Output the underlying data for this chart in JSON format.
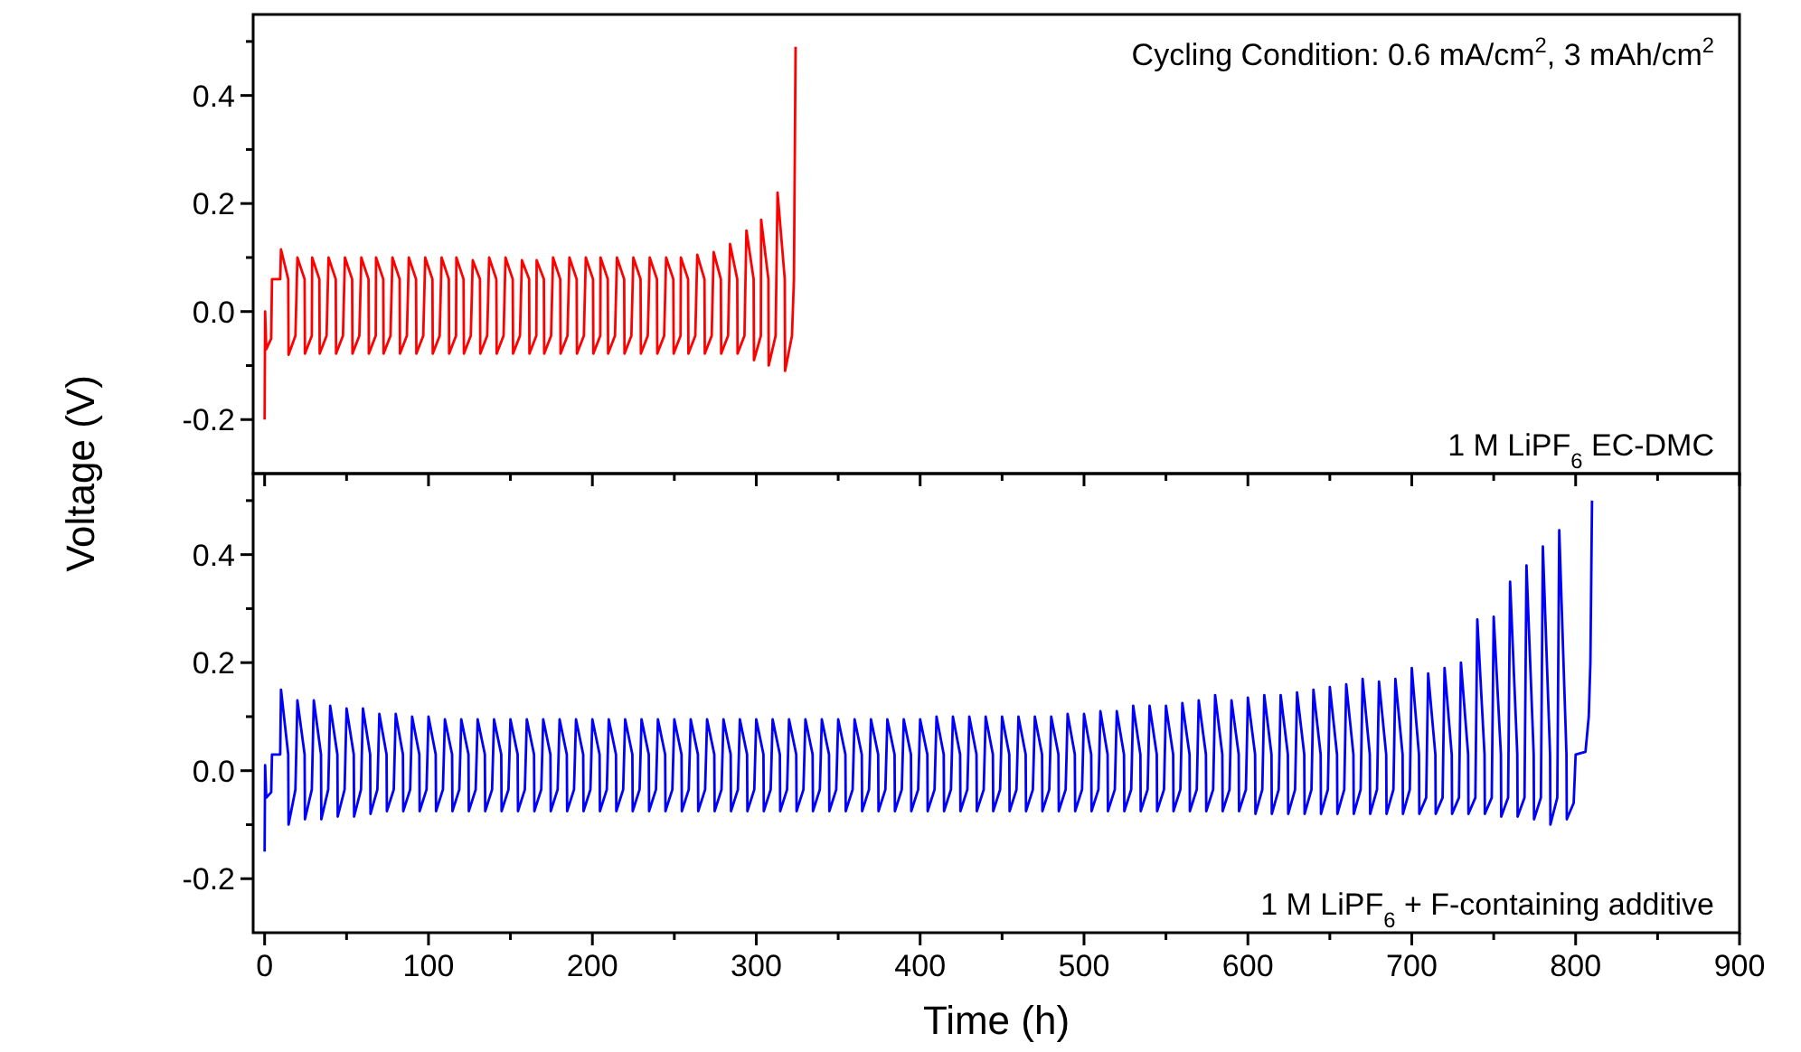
{
  "chart_data": [
    {
      "type": "line",
      "ylabel": "Voltage (V)",
      "annotations": [
        "Cycling Condition: 0.6 mA/cm$^{2}$, 3 mAh/cm$^{2}$",
        "1 M LiPF$_{6}$ EC-DMC"
      ],
      "xlim": [
        -7,
        900
      ],
      "ylim": [
        -0.3,
        0.55
      ],
      "xticks": [
        0,
        {
          "value": 50,
          "label": null
        },
        100,
        {
          "value": 150,
          "label": null
        },
        200,
        {
          "value": 250,
          "label": null
        },
        300,
        {
          "value": 350,
          "label": null
        },
        400,
        {
          "value": 450,
          "label": null
        },
        500,
        {
          "value": 550,
          "label": null
        },
        600,
        {
          "value": 650,
          "label": null
        },
        700,
        {
          "value": 750,
          "label": null
        },
        800,
        {
          "value": 850,
          "label": null
        },
        900
      ],
      "yticks": [
        -0.2,
        {
          "value": -0.1,
          "label": null
        },
        {
          "value": 0,
          "label": "0.0"
        },
        {
          "value": 0.1,
          "label": null
        },
        0.2,
        {
          "value": 0.3,
          "label": null
        },
        0.4,
        {
          "value": 0.5,
          "label": null
        }
      ],
      "tick_labels": "y",
      "grid": false,
      "series": [
        {
          "color": "#ff0000",
          "x": [
            0,
            0.3,
            1,
            4,
            4.5,
            9.5,
            10,
            14.4,
            14.6,
            18.8,
            20,
            24.4,
            24.6,
            28.8,
            29,
            33.4,
            33.6,
            37.8,
            39,
            43.4,
            43.6,
            47.8,
            49,
            53.4,
            53.6,
            57.8,
            59,
            63.4,
            63.6,
            67.8,
            68,
            72.4,
            72.6,
            76.8,
            78,
            82.4,
            82.6,
            86.8,
            88,
            92.4,
            92.6,
            96.8,
            98,
            102.4,
            102.6,
            106.8,
            108,
            112.4,
            112.6,
            116.8,
            117,
            121.4,
            121.6,
            125.8,
            127,
            131.4,
            131.6,
            135.8,
            137,
            141.4,
            141.6,
            145.8,
            147,
            151.4,
            151.6,
            155.8,
            157,
            161.4,
            161.6,
            165.8,
            166,
            170.4,
            170.6,
            174.8,
            176,
            180.4,
            180.6,
            184.8,
            186,
            190.4,
            190.6,
            194.8,
            196,
            200.4,
            200.6,
            204.8,
            205,
            209.4,
            209.6,
            213.8,
            215,
            219.4,
            219.6,
            223.8,
            225,
            229.4,
            229.6,
            233.8,
            235,
            239.4,
            239.6,
            243.8,
            245,
            249.4,
            249.6,
            253.8,
            254,
            258.4,
            258.6,
            262.8,
            264,
            268.4,
            268.6,
            272.8,
            274,
            278.4,
            278.6,
            282.8,
            284,
            288.4,
            288.6,
            292.8,
            294,
            298.4,
            298.6,
            302.8,
            303,
            307.4,
            307.6,
            311.8,
            313,
            317.4,
            317.6,
            321.8,
            323,
            323.5,
            324
          ],
          "values": [
            -0.2,
            0,
            -0.07,
            -0.05,
            0.06,
            0.06,
            0.115,
            0.06,
            -0.08,
            -0.045,
            0.1,
            0.06,
            -0.078,
            -0.045,
            0.1,
            0.06,
            -0.078,
            -0.045,
            0.1,
            0.06,
            -0.078,
            -0.045,
            0.1,
            0.06,
            -0.078,
            -0.045,
            0.1,
            0.06,
            -0.078,
            -0.045,
            0.1,
            0.06,
            -0.078,
            -0.045,
            0.1,
            0.06,
            -0.078,
            -0.045,
            0.1,
            0.06,
            -0.078,
            -0.045,
            0.1,
            0.06,
            -0.078,
            -0.045,
            0.1,
            0.06,
            -0.078,
            -0.045,
            0.1,
            0.06,
            -0.078,
            -0.045,
            0.095,
            0.06,
            -0.078,
            -0.045,
            0.1,
            0.06,
            -0.078,
            -0.045,
            0.1,
            0.06,
            -0.078,
            -0.045,
            0.095,
            0.06,
            -0.078,
            -0.045,
            0.095,
            0.06,
            -0.078,
            -0.045,
            0.1,
            0.06,
            -0.078,
            -0.045,
            0.1,
            0.06,
            -0.078,
            -0.045,
            0.1,
            0.06,
            -0.078,
            -0.045,
            0.1,
            0.06,
            -0.078,
            -0.045,
            0.1,
            0.06,
            -0.078,
            -0.045,
            0.1,
            0.06,
            -0.078,
            -0.045,
            0.1,
            0.06,
            -0.078,
            -0.045,
            0.1,
            0.06,
            -0.078,
            -0.045,
            0.1,
            0.06,
            -0.078,
            -0.045,
            0.105,
            0.06,
            -0.078,
            -0.045,
            0.11,
            0.06,
            -0.078,
            -0.045,
            0.125,
            0.06,
            -0.078,
            -0.045,
            0.15,
            0.06,
            -0.09,
            -0.045,
            0.17,
            0.06,
            -0.1,
            -0.045,
            0.22,
            0.06,
            -0.11,
            -0.045,
            0.06,
            0.28,
            0.49
          ]
        }
      ]
    },
    {
      "type": "line",
      "xlabel": "Time (h)",
      "annotations": [
        "1 M LiPF$_{6}$ + F-containing additive"
      ],
      "xlim": [
        -7,
        900
      ],
      "ylim": [
        -0.3,
        0.55
      ],
      "xticks": [
        0,
        {
          "value": 50,
          "label": null
        },
        100,
        {
          "value": 150,
          "label": null
        },
        200,
        {
          "value": 250,
          "label": null
        },
        300,
        {
          "value": 350,
          "label": null
        },
        400,
        {
          "value": 450,
          "label": null
        },
        500,
        {
          "value": 550,
          "label": null
        },
        600,
        {
          "value": 650,
          "label": null
        },
        700,
        {
          "value": 750,
          "label": null
        },
        800,
        {
          "value": 850,
          "label": null
        },
        900
      ],
      "yticks": [
        -0.2,
        {
          "value": -0.1,
          "label": null
        },
        {
          "value": 0,
          "label": "0.0"
        },
        {
          "value": 0.1,
          "label": null
        },
        0.2,
        {
          "value": 0.3,
          "label": null
        },
        0.4,
        {
          "value": 0.5,
          "label": null
        }
      ],
      "grid": false,
      "series": [
        {
          "color": "#0000ff",
          "x": [
            0,
            0.3,
            1,
            4,
            4.5,
            9.5,
            10,
            14.4,
            14.6,
            18.8,
            20,
            24.4,
            24.6,
            28.8,
            30,
            34.4,
            34.6,
            38.8,
            40,
            44.4,
            44.6,
            48.8,
            50,
            54.4,
            54.6,
            58.8,
            60,
            64.4,
            64.6,
            68.8,
            70,
            74.4,
            74.6,
            78.8,
            80,
            84.4,
            84.6,
            88.8,
            90,
            94.4,
            94.6,
            98.8,
            100,
            104.4,
            104.6,
            108.8,
            110,
            114.4,
            114.6,
            118.8,
            120,
            124.4,
            124.6,
            128.8,
            130,
            134.4,
            134.6,
            138.8,
            140,
            144.4,
            144.6,
            148.8,
            150,
            154.4,
            154.6,
            158.8,
            160,
            164.4,
            164.6,
            168.8,
            170,
            174.4,
            174.6,
            178.8,
            180,
            184.4,
            184.6,
            188.8,
            190,
            194.4,
            194.6,
            198.8,
            200,
            204.4,
            204.6,
            208.8,
            210,
            214.4,
            214.6,
            218.8,
            220,
            224.4,
            224.6,
            228.8,
            230,
            234.4,
            234.6,
            238.8,
            240,
            244.4,
            244.6,
            248.8,
            250,
            254.4,
            254.6,
            258.8,
            260,
            264.4,
            264.6,
            268.8,
            270,
            274.4,
            274.6,
            278.8,
            280,
            284.4,
            284.6,
            288.8,
            290,
            294.4,
            294.6,
            298.8,
            300,
            304.4,
            304.6,
            308.8,
            310,
            314.4,
            314.6,
            318.8,
            320,
            324.4,
            324.6,
            328.8,
            330,
            334.4,
            334.6,
            338.8,
            340,
            344.4,
            344.6,
            348.8,
            350,
            354.4,
            354.6,
            358.8,
            360,
            364.4,
            364.6,
            368.8,
            370,
            374.4,
            374.6,
            378.8,
            380,
            384.4,
            384.6,
            388.8,
            390,
            394.4,
            394.6,
            398.8,
            400,
            404.4,
            404.6,
            408.8,
            410,
            414.4,
            414.6,
            418.8,
            420,
            424.4,
            424.6,
            428.8,
            430,
            434.4,
            434.6,
            438.8,
            440,
            444.4,
            444.6,
            448.8,
            450,
            454.4,
            454.6,
            458.8,
            460,
            464.4,
            464.6,
            468.8,
            470,
            474.4,
            474.6,
            478.8,
            480,
            484.4,
            484.6,
            488.8,
            490,
            494.4,
            494.6,
            498.8,
            500,
            504.4,
            504.6,
            508.8,
            510,
            514.4,
            514.6,
            518.8,
            520,
            524.4,
            524.6,
            528.8,
            530,
            534.4,
            534.6,
            538.8,
            540,
            544.4,
            544.6,
            548.8,
            550,
            554.4,
            554.6,
            558.8,
            560,
            564.4,
            564.6,
            568.8,
            570,
            574.4,
            574.6,
            578.8,
            580,
            584.4,
            584.6,
            588.8,
            590,
            594.4,
            594.6,
            598.8,
            600,
            604.4,
            604.6,
            608.8,
            610,
            614.4,
            614.6,
            618.8,
            620,
            624.4,
            624.6,
            628.8,
            630,
            634.4,
            634.6,
            638.8,
            640,
            644.4,
            644.6,
            648.8,
            650,
            654.4,
            654.6,
            658.8,
            660,
            664.4,
            664.6,
            668.8,
            670,
            674.4,
            674.6,
            678.8,
            680,
            684.4,
            684.6,
            688.8,
            690,
            694.4,
            694.6,
            698.8,
            700,
            704.4,
            704.6,
            708.8,
            710,
            714.4,
            714.6,
            718.8,
            720,
            724.4,
            724.6,
            728.8,
            730,
            734.4,
            734.6,
            738.8,
            740,
            744.4,
            744.6,
            748.8,
            750,
            754.4,
            754.6,
            758.8,
            760,
            764.4,
            764.6,
            768.8,
            770,
            774.4,
            774.6,
            778.8,
            780,
            784.4,
            784.6,
            788.8,
            790,
            794.4,
            794.6,
            798.8,
            800,
            806,
            808,
            809,
            810
          ],
          "values": [
            -0.15,
            0.01,
            -0.05,
            -0.04,
            0.03,
            0.03,
            0.15,
            0.03,
            -0.1,
            -0.035,
            0.13,
            0.03,
            -0.09,
            -0.035,
            0.13,
            0.03,
            -0.09,
            -0.035,
            0.12,
            0.03,
            -0.085,
            -0.035,
            0.115,
            0.03,
            -0.085,
            -0.035,
            0.115,
            0.03,
            -0.08,
            -0.035,
            0.105,
            0.03,
            -0.075,
            -0.035,
            0.105,
            0.03,
            -0.075,
            -0.035,
            0.1,
            0.03,
            -0.075,
            -0.035,
            0.1,
            0.03,
            -0.075,
            -0.035,
            0.095,
            0.03,
            -0.075,
            -0.035,
            0.095,
            0.03,
            -0.075,
            -0.035,
            0.095,
            0.03,
            -0.075,
            -0.035,
            0.095,
            0.03,
            -0.075,
            -0.035,
            0.095,
            0.03,
            -0.075,
            -0.035,
            0.095,
            0.03,
            -0.075,
            -0.035,
            0.095,
            0.03,
            -0.075,
            -0.035,
            0.095,
            0.03,
            -0.075,
            -0.035,
            0.095,
            0.03,
            -0.075,
            -0.035,
            0.095,
            0.03,
            -0.075,
            -0.035,
            0.095,
            0.03,
            -0.075,
            -0.035,
            0.095,
            0.03,
            -0.075,
            -0.035,
            0.095,
            0.03,
            -0.075,
            -0.035,
            0.095,
            0.03,
            -0.075,
            -0.035,
            0.095,
            0.03,
            -0.075,
            -0.035,
            0.095,
            0.03,
            -0.075,
            -0.035,
            0.095,
            0.03,
            -0.075,
            -0.035,
            0.095,
            0.03,
            -0.075,
            -0.035,
            0.095,
            0.03,
            -0.075,
            -0.035,
            0.095,
            0.03,
            -0.075,
            -0.035,
            0.095,
            0.03,
            -0.075,
            -0.035,
            0.095,
            0.03,
            -0.075,
            -0.035,
            0.095,
            0.03,
            -0.075,
            -0.035,
            0.095,
            0.03,
            -0.075,
            -0.035,
            0.095,
            0.03,
            -0.075,
            -0.035,
            0.095,
            0.03,
            -0.075,
            -0.035,
            0.095,
            0.03,
            -0.075,
            -0.035,
            0.095,
            0.03,
            -0.075,
            -0.035,
            0.095,
            0.03,
            -0.075,
            -0.035,
            0.095,
            0.03,
            -0.075,
            -0.035,
            0.1,
            0.03,
            -0.075,
            -0.035,
            0.1,
            0.03,
            -0.075,
            -0.035,
            0.1,
            0.03,
            -0.075,
            -0.035,
            0.1,
            0.03,
            -0.075,
            -0.035,
            0.1,
            0.03,
            -0.075,
            -0.035,
            0.1,
            0.03,
            -0.075,
            -0.035,
            0.1,
            0.03,
            -0.075,
            -0.035,
            0.1,
            0.03,
            -0.075,
            -0.035,
            0.105,
            0.03,
            -0.075,
            -0.035,
            0.105,
            0.03,
            -0.075,
            -0.035,
            0.11,
            0.03,
            -0.075,
            -0.035,
            0.11,
            0.03,
            -0.075,
            -0.035,
            0.12,
            0.03,
            -0.075,
            -0.035,
            0.12,
            0.03,
            -0.075,
            -0.035,
            0.12,
            0.03,
            -0.075,
            -0.035,
            0.125,
            0.03,
            -0.075,
            -0.035,
            0.13,
            0.03,
            -0.075,
            -0.035,
            0.14,
            0.03,
            -0.075,
            -0.035,
            0.13,
            0.03,
            -0.075,
            -0.035,
            0.135,
            0.03,
            -0.08,
            -0.035,
            0.14,
            0.03,
            -0.08,
            -0.035,
            0.14,
            0.03,
            -0.08,
            -0.035,
            0.145,
            0.03,
            -0.08,
            -0.035,
            0.15,
            0.03,
            -0.08,
            -0.035,
            0.155,
            0.03,
            -0.08,
            -0.035,
            0.16,
            0.03,
            -0.08,
            -0.035,
            0.17,
            0.03,
            -0.08,
            -0.035,
            0.165,
            0.03,
            -0.08,
            -0.035,
            0.17,
            0.03,
            -0.08,
            -0.035,
            0.19,
            0.03,
            -0.08,
            -0.05,
            0.18,
            0.03,
            -0.08,
            -0.05,
            0.19,
            0.03,
            -0.08,
            -0.05,
            0.2,
            0.03,
            -0.08,
            -0.05,
            0.28,
            0.03,
            -0.08,
            -0.05,
            0.285,
            0.03,
            -0.085,
            -0.05,
            0.35,
            0.03,
            -0.085,
            -0.05,
            0.38,
            0.03,
            -0.09,
            -0.05,
            0.415,
            0.03,
            -0.1,
            -0.05,
            0.445,
            0.03,
            -0.09,
            -0.06,
            0.03,
            0.035,
            0.1,
            0.2,
            0.5
          ]
        }
      ]
    }
  ]
}
